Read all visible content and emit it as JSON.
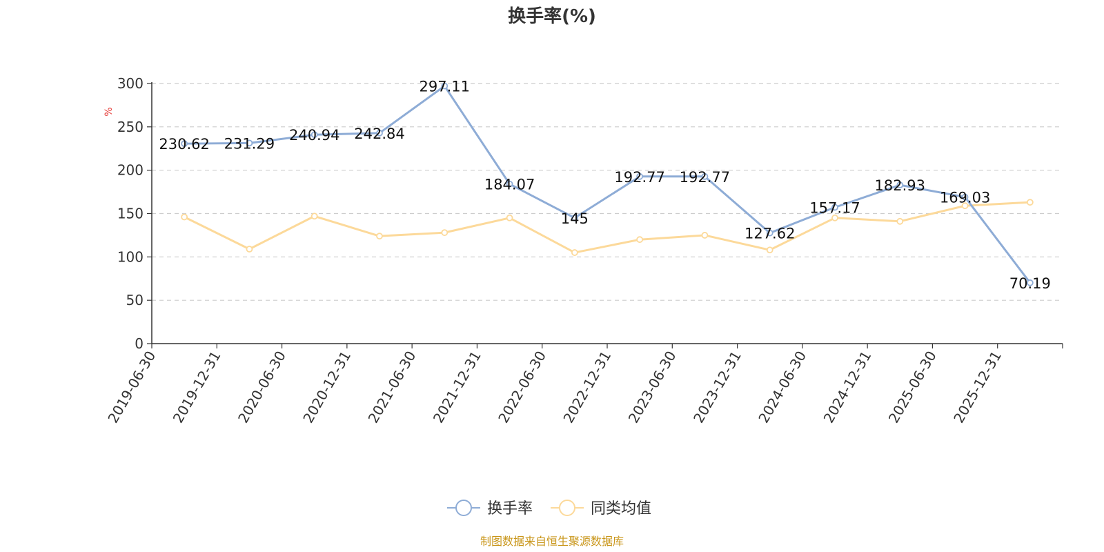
{
  "chart_data": {
    "type": "line",
    "title": "换手率(%)",
    "ylabel": "%",
    "ylim": [
      0,
      300
    ],
    "yticks": [
      0,
      50,
      100,
      150,
      200,
      250,
      300
    ],
    "grid": true,
    "legend_position": "bottom",
    "categories": [
      "2019-06-30",
      "2019-12-31",
      "2020-06-30",
      "2020-12-31",
      "2021-06-30",
      "2021-12-31",
      "2022-06-30",
      "2022-12-31",
      "2023-06-30",
      "2023-12-31",
      "2024-06-30",
      "2024-12-31",
      "2025-06-30",
      "2025-12-31"
    ],
    "series": [
      {
        "name": "换手率",
        "color": "#8eacd6",
        "values": [
          230.62,
          231.29,
          240.94,
          242.84,
          297.11,
          184.07,
          145,
          192.77,
          192.77,
          127.62,
          157.17,
          182.93,
          169.03,
          70.19
        ],
        "labels": [
          "230.62",
          "231.29",
          "240.94",
          "242.84",
          "297.11",
          "184.07",
          "145",
          "192.77",
          "192.77",
          "127.62",
          "157.17",
          "182.93",
          "169.03",
          "70.19"
        ],
        "show_labels": true
      },
      {
        "name": "同类均值",
        "color": "#fcd99a",
        "values": [
          146,
          109,
          147,
          124,
          128,
          145,
          105,
          120,
          125,
          108,
          145,
          141,
          159,
          163
        ],
        "show_labels": false
      }
    ],
    "source": "制图数据来自恒生聚源数据库"
  }
}
